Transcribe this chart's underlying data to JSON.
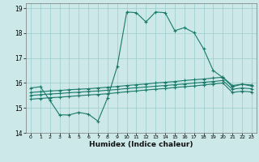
{
  "xlabel": "Humidex (Indice chaleur)",
  "background_color": "#cce8e8",
  "grid_color": "#99cccc",
  "line_color": "#1a7a6a",
  "xlim": [
    -0.5,
    23.5
  ],
  "ylim": [
    14,
    19.2
  ],
  "x_ticks": [
    0,
    1,
    2,
    3,
    4,
    5,
    6,
    7,
    8,
    9,
    10,
    11,
    12,
    13,
    14,
    15,
    16,
    17,
    18,
    19,
    20,
    21,
    22,
    23
  ],
  "y_ticks": [
    14,
    15,
    16,
    17,
    18,
    19
  ],
  "line1_x": [
    0,
    1,
    2,
    3,
    4,
    5,
    6,
    7,
    8,
    9,
    10,
    11,
    12,
    13,
    14,
    15,
    16,
    17,
    18,
    19,
    20,
    21,
    22,
    23
  ],
  "line1_y": [
    15.8,
    15.85,
    15.3,
    14.72,
    14.72,
    14.82,
    14.75,
    14.47,
    15.4,
    16.65,
    18.85,
    18.82,
    18.45,
    18.85,
    18.82,
    18.1,
    18.22,
    18.02,
    17.37,
    16.5,
    16.22,
    15.85,
    15.95,
    15.88
  ],
  "line2_x": [
    0,
    1,
    2,
    3,
    4,
    5,
    6,
    7,
    8,
    9,
    10,
    11,
    12,
    13,
    14,
    15,
    16,
    17,
    18,
    19,
    20,
    21,
    22,
    23
  ],
  "line2_y": [
    15.62,
    15.65,
    15.68,
    15.7,
    15.73,
    15.75,
    15.77,
    15.8,
    15.83,
    15.86,
    15.9,
    15.93,
    15.96,
    16.0,
    16.03,
    16.06,
    16.1,
    16.13,
    16.16,
    16.2,
    16.23,
    15.9,
    15.95,
    15.92
  ],
  "line3_x": [
    0,
    1,
    2,
    3,
    4,
    5,
    6,
    7,
    8,
    9,
    10,
    11,
    12,
    13,
    14,
    15,
    16,
    17,
    18,
    19,
    20,
    21,
    22,
    23
  ],
  "line3_y": [
    15.5,
    15.53,
    15.56,
    15.58,
    15.61,
    15.63,
    15.66,
    15.68,
    15.71,
    15.74,
    15.78,
    15.81,
    15.84,
    15.87,
    15.9,
    15.93,
    15.96,
    16.0,
    16.03,
    16.06,
    16.1,
    15.75,
    15.8,
    15.77
  ],
  "line4_x": [
    0,
    1,
    2,
    3,
    4,
    5,
    6,
    7,
    8,
    9,
    10,
    11,
    12,
    13,
    14,
    15,
    16,
    17,
    18,
    19,
    20,
    21,
    22,
    23
  ],
  "line4_y": [
    15.35,
    15.38,
    15.41,
    15.43,
    15.46,
    15.49,
    15.52,
    15.54,
    15.57,
    15.61,
    15.65,
    15.68,
    15.72,
    15.75,
    15.78,
    15.82,
    15.85,
    15.88,
    15.92,
    15.96,
    16.0,
    15.62,
    15.67,
    15.64
  ]
}
